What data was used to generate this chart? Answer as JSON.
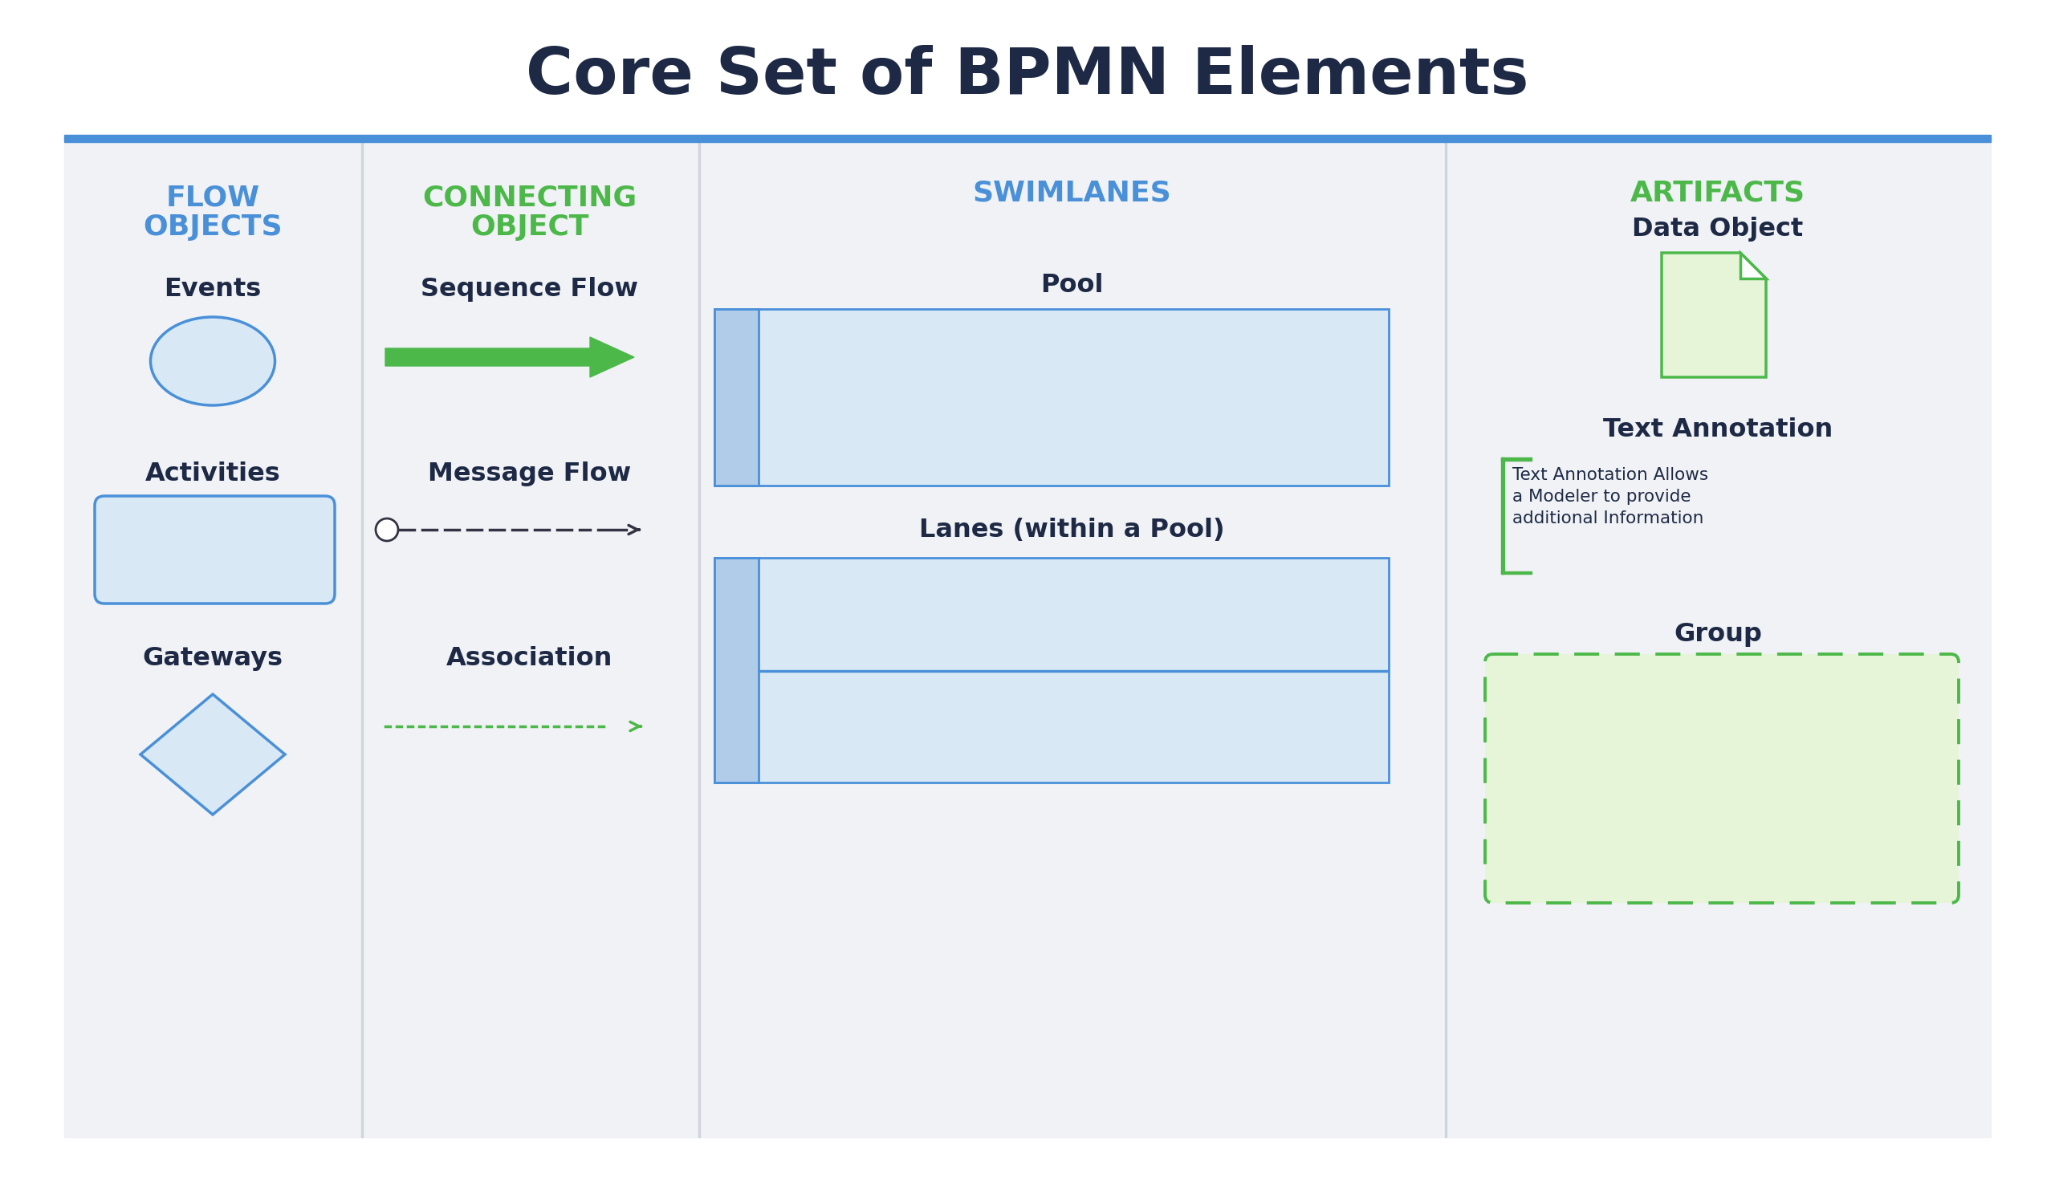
{
  "title": "Core Set of BPMN Elements",
  "title_color": "#1e2a45",
  "title_fontsize": 58,
  "bg_color": "#ffffff",
  "panel_bg": "#f0f2f5",
  "blue_line_color": "#4a90d9",
  "section_headers": [
    "FLOW\nOBJECTS",
    "CONNECTING\nOBJECT",
    "SWIMLANES",
    "ARTIFACTS"
  ],
  "header_colors": [
    "#4a90d9",
    "#4db84a",
    "#4a90d9",
    "#4db84a"
  ],
  "flow_color": "#4a90d9",
  "green_color": "#4db84a",
  "dark_text": "#1e2a45",
  "shape_fill": "#d8e9f5",
  "shape_border": "#4a90d9",
  "green_fill": "#e6f4d8",
  "green_border": "#4db84a",
  "divider_color": "#d0d5dd",
  "header_strip_color": "#b0cce8"
}
